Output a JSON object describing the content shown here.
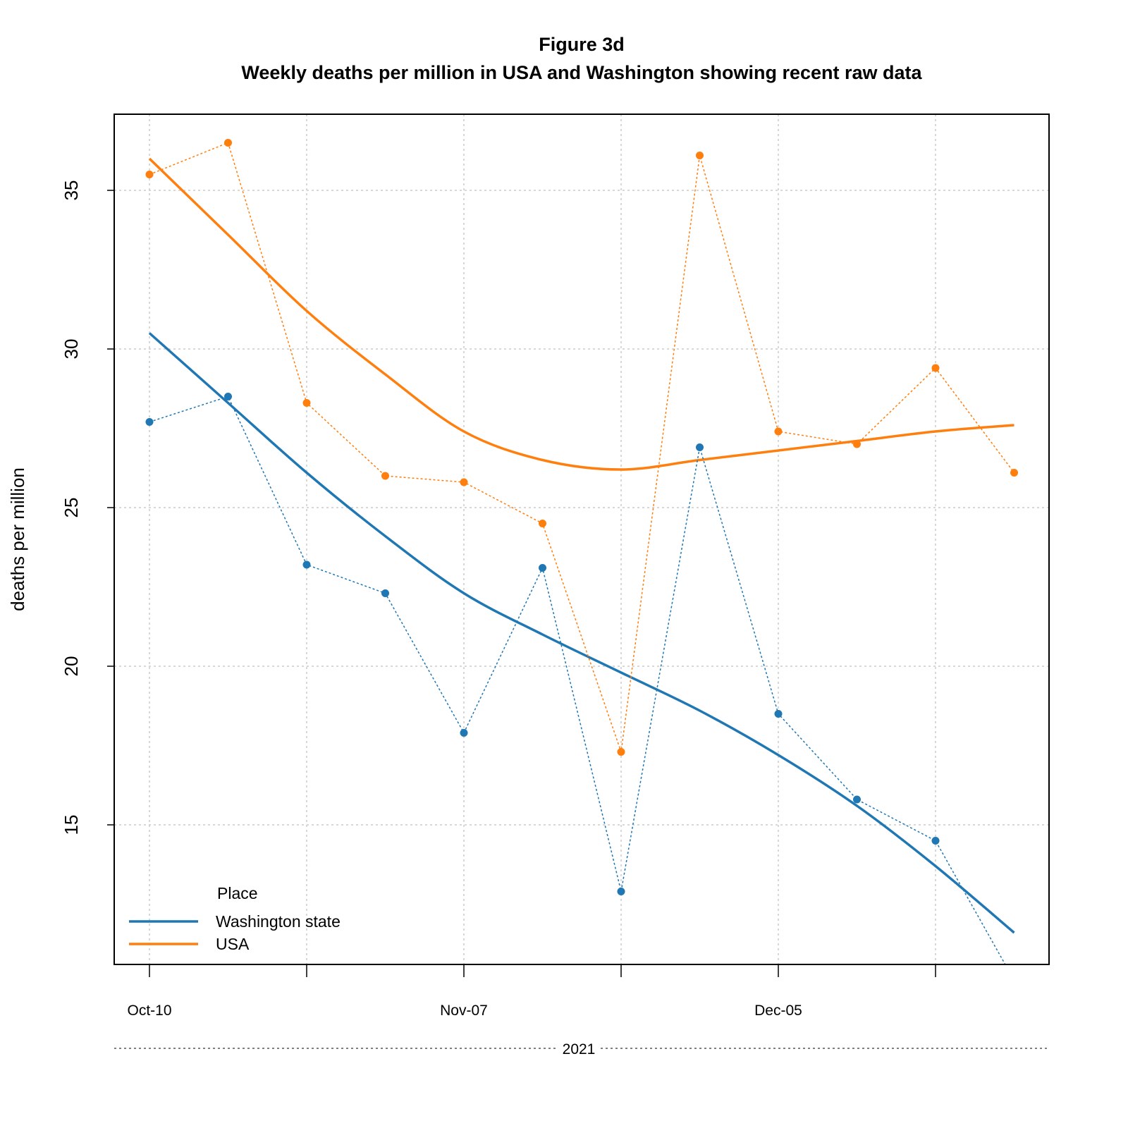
{
  "chart_data": {
    "type": "line",
    "title": "Figure 3d",
    "subtitle": "Weekly deaths per million in USA and Washington showing recent raw data",
    "xlabel": "",
    "ylabel": "deaths per million",
    "year_label": "2021",
    "x_tick_labels": [
      "Oct-10",
      "Nov-07",
      "Dec-05"
    ],
    "y_ticks": [
      15,
      20,
      25,
      30,
      35
    ],
    "ylim": [
      10.6,
      37.4
    ],
    "grid": true,
    "legend": {
      "title": "Place",
      "placement": "bottom-left",
      "entries": [
        "Washington state",
        "USA"
      ]
    },
    "x": [
      "2021-10-10",
      "2021-10-17",
      "2021-10-24",
      "2021-10-31",
      "2021-11-07",
      "2021-11-14",
      "2021-11-21",
      "2021-11-28",
      "2021-12-05",
      "2021-12-12",
      "2021-12-19",
      "2021-12-26"
    ],
    "series": [
      {
        "name": "Washington state",
        "color": "#1f77b4",
        "raw": [
          27.7,
          28.5,
          23.2,
          22.3,
          17.9,
          23.1,
          12.9,
          26.9,
          18.5,
          15.8,
          14.5,
          10.1
        ],
        "smooth": [
          30.5,
          28.3,
          26.1,
          24.1,
          22.3,
          21.0,
          19.8,
          18.6,
          17.2,
          15.6,
          13.7,
          11.6
        ]
      },
      {
        "name": "USA",
        "color": "#ff7f0e",
        "raw": [
          35.5,
          36.5,
          28.3,
          26.0,
          25.8,
          24.5,
          17.3,
          36.1,
          27.4,
          27.0,
          29.4,
          26.1
        ],
        "smooth": [
          36.0,
          33.6,
          31.2,
          29.2,
          27.4,
          26.5,
          26.2,
          26.5,
          26.8,
          27.1,
          27.4,
          27.6
        ]
      }
    ]
  }
}
